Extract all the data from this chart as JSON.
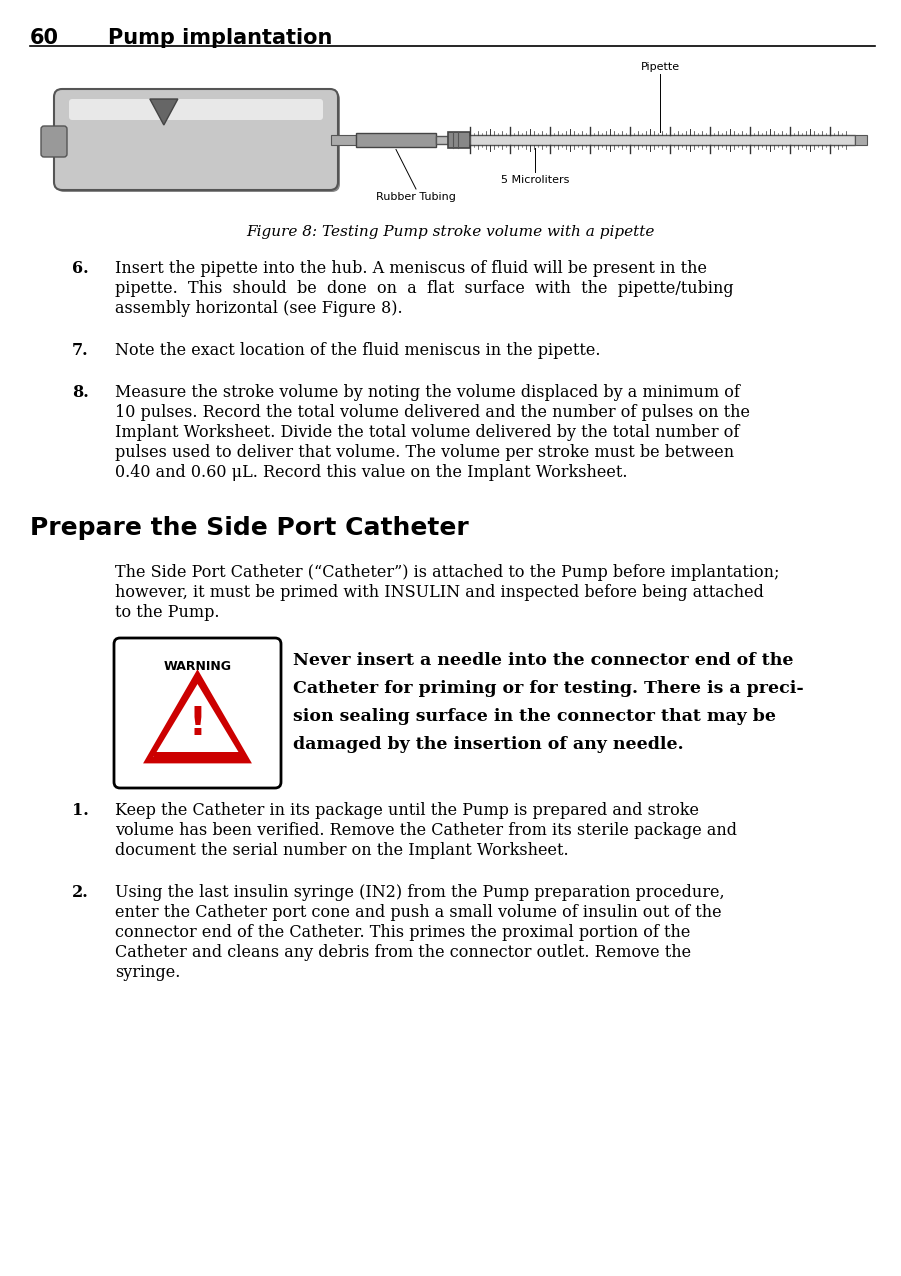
{
  "page_number": "60",
  "header_title": "Pump implantation",
  "background_color": "#ffffff",
  "text_color": "#000000",
  "figure_caption": "Figure 8: Testing Pump stroke volume with a pipette",
  "item6_num": "6.",
  "item6_text_lines": [
    "Insert the pipette into the hub. A meniscus of fluid will be present in the",
    "pipette.  This  should  be  done  on  a  flat  surface  with  the  pipette/tubing",
    "assembly horizontal (see Figure 8)."
  ],
  "item7_num": "7.",
  "item7_text_lines": [
    "Note the exact location of the fluid meniscus in the pipette."
  ],
  "item8_num": "8.",
  "item8_text_lines": [
    "Measure the stroke volume by noting the volume displaced by a minimum of",
    "10 pulses. Record the total volume delivered and the number of pulses on the",
    "Implant Worksheet. Divide the total volume delivered by the total number of",
    "pulses used to deliver that volume. The volume per stroke must be between",
    "0.40 and 0.60 μL. Record this value on the Implant Worksheet."
  ],
  "section_title": "Prepare the Side Port Catheter",
  "intro_lines": [
    "The Side Port Catheter (“Catheter”) is attached to the Pump before implantation;",
    "however, it must be primed with INSULIN and inspected before being attached",
    "to the Pump."
  ],
  "warning_label": "WARNING",
  "warning_lines": [
    "Never insert a needle into the connector end of the",
    "Catheter for priming or for testing. There is a preci-",
    "sion sealing surface in the connector that may be",
    "damaged by the insertion of any needle."
  ],
  "item1_num": "1.",
  "item1_text_lines": [
    "Keep the Catheter in its package until the Pump is prepared and stroke",
    "volume has been verified. Remove the Catheter from its sterile package and",
    "document the serial number on the Implant Worksheet."
  ],
  "item2_num": "2.",
  "item2_text_lines": [
    "Using the last insulin syringe (IN2) from the Pump preparation procedure,",
    "enter the Catheter port cone and push a small volume of insulin out of the",
    "connector end of the Catheter. This primes the proximal portion of the",
    "Catheter and cleans any debris from the connector outlet. Remove the",
    "syringe."
  ],
  "label_pipette": "Pipette",
  "label_5micro": "5 Microliters",
  "label_rubber": "Rubber Tubing"
}
